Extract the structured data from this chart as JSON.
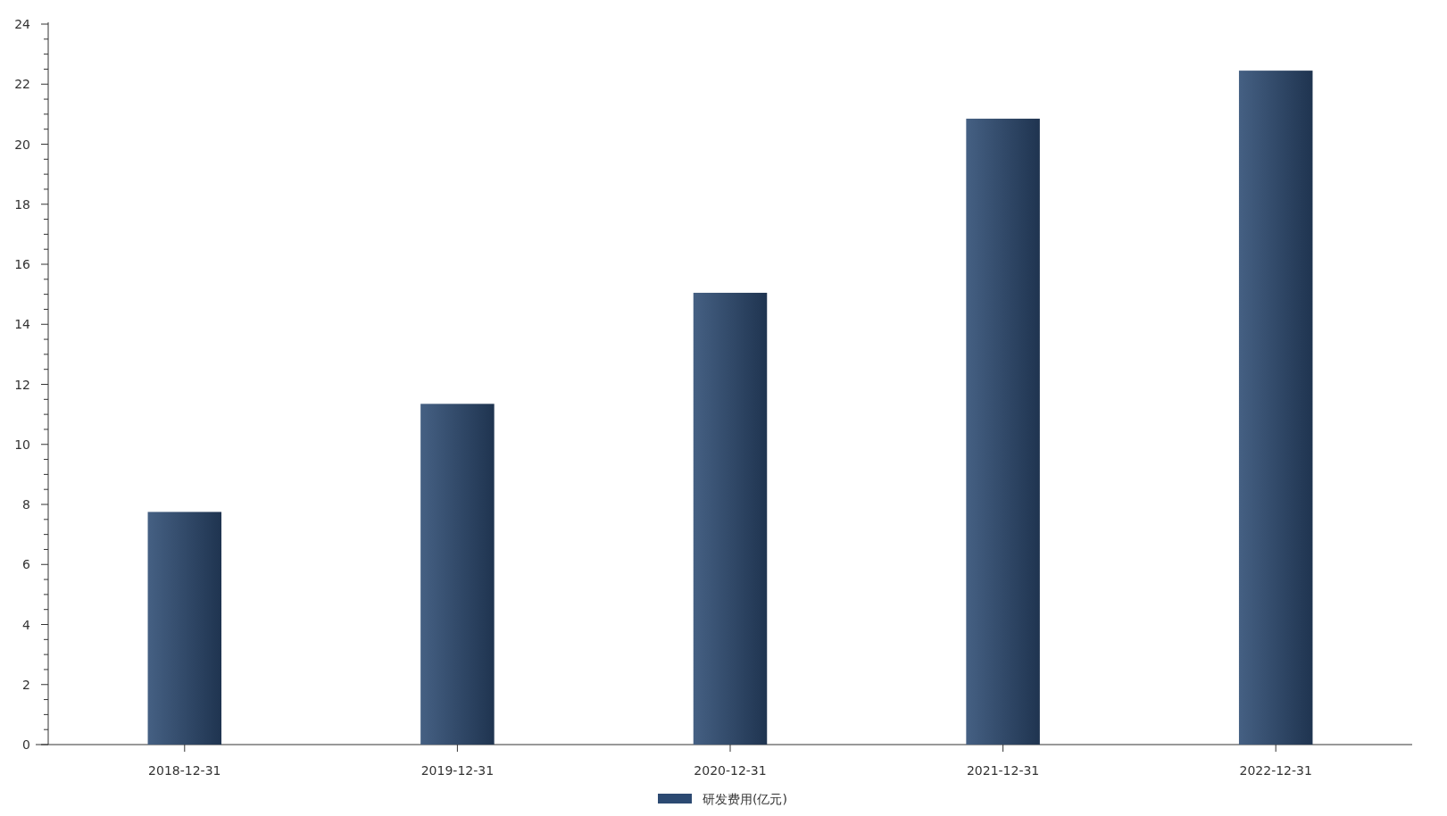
{
  "chart_data": {
    "type": "bar",
    "categories": [
      "2018-12-31",
      "2019-12-31",
      "2020-12-31",
      "2021-12-31",
      "2022-12-31"
    ],
    "series": [
      {
        "name": "研发费用(亿元)",
        "color": "#2c4a72",
        "values": [
          7.75,
          11.35,
          15.05,
          20.85,
          22.45
        ]
      }
    ],
    "ylim": [
      0,
      24
    ],
    "yticks": [
      0,
      {
        "value": 0.5,
        "label": null
      },
      {
        "value": 1,
        "label": null
      },
      {
        "value": 1.5,
        "label": null
      },
      2,
      {
        "value": 2.5,
        "label": null
      },
      {
        "value": 3,
        "label": null
      },
      {
        "value": 3.5,
        "label": null
      },
      4,
      {
        "value": 4.5,
        "label": null
      },
      {
        "value": 5,
        "label": null
      },
      {
        "value": 5.5,
        "label": null
      },
      6,
      {
        "value": 6.5,
        "label": null
      },
      {
        "value": 7,
        "label": null
      },
      {
        "value": 7.5,
        "label": null
      },
      8,
      {
        "value": 8.5,
        "label": null
      },
      {
        "value": 9,
        "label": null
      },
      {
        "value": 9.5,
        "label": null
      },
      10,
      {
        "value": 10.5,
        "label": null
      },
      {
        "value": 11,
        "label": null
      },
      {
        "value": 11.5,
        "label": null
      },
      12,
      {
        "value": 12.5,
        "label": null
      },
      {
        "value": 13,
        "label": null
      },
      {
        "value": 13.5,
        "label": null
      },
      14,
      {
        "value": 14.5,
        "label": null
      },
      {
        "value": 15,
        "label": null
      },
      {
        "value": 15.5,
        "label": null
      },
      16,
      {
        "value": 16.5,
        "label": null
      },
      {
        "value": 17,
        "label": null
      },
      {
        "value": 17.5,
        "label": null
      },
      18,
      {
        "value": 18.5,
        "label": null
      },
      {
        "value": 19,
        "label": null
      },
      {
        "value": 19.5,
        "label": null
      },
      20,
      {
        "value": 20.5,
        "label": null
      },
      {
        "value": 21,
        "label": null
      },
      {
        "value": 21.5,
        "label": null
      },
      22,
      {
        "value": 22.5,
        "label": null
      },
      {
        "value": 23,
        "label": null
      },
      {
        "value": 23.5,
        "label": null
      },
      24
    ],
    "grid": false,
    "legend": "bottom"
  }
}
